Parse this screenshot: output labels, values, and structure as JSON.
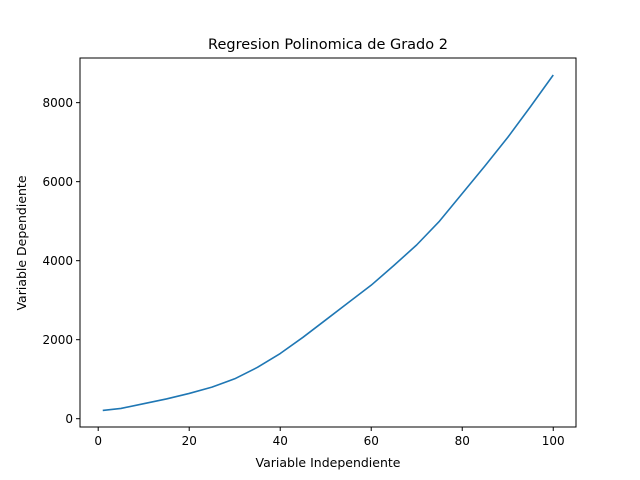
{
  "chart_data": {
    "type": "line",
    "title": "Regresion Polinomica de Grado 2",
    "xlabel": "Variable Independiente",
    "ylabel": "Variable Dependiente",
    "xlim": [
      -4,
      105
    ],
    "ylim": [
      -210,
      9130
    ],
    "xticks": [
      0,
      20,
      40,
      60,
      80,
      100
    ],
    "yticks": [
      0,
      2000,
      4000,
      6000,
      8000
    ],
    "grid": false,
    "series": [
      {
        "color": "#1f77b4",
        "x": [
          1,
          5,
          10,
          15,
          20,
          25,
          30,
          35,
          40,
          45,
          50,
          55,
          60,
          65,
          70,
          75,
          80,
          85,
          90,
          95,
          100
        ],
        "y": [
          210,
          260,
          380,
          500,
          640,
          800,
          1010,
          1300,
          1650,
          2060,
          2500,
          2940,
          3380,
          3880,
          4400,
          5000,
          5700,
          6400,
          7120,
          7900,
          8700
        ]
      }
    ]
  }
}
